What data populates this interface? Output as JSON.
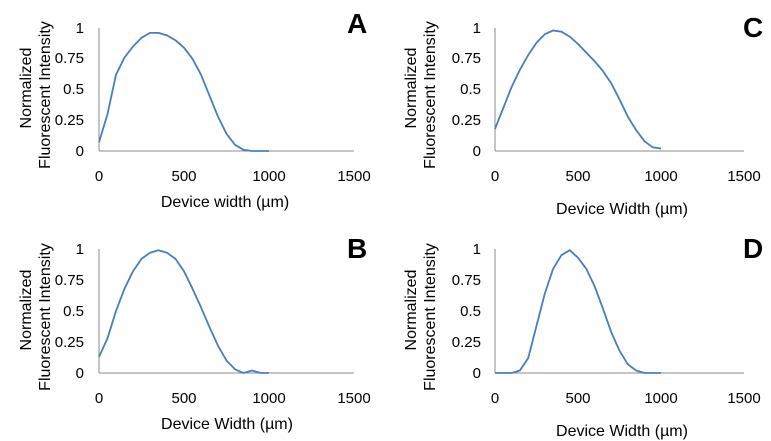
{
  "colors": {
    "series": "#4A7EBB",
    "axis": "#8C8C8C",
    "text": "#000000"
  },
  "chart_data": [
    {
      "type": "line",
      "panel_label": "A",
      "xlabel": "Device width (µm)",
      "ylabel_lines": [
        "Normalized",
        "Fluorescent Intensity"
      ],
      "xlim": [
        0,
        1500
      ],
      "ylim": [
        0,
        1
      ],
      "x_ticks": [
        "0",
        "500",
        "1000",
        "1500"
      ],
      "y_ticks": [
        "0",
        "0.25",
        "0.5",
        "0.75",
        "1"
      ],
      "grid": false,
      "x": [
        0,
        50,
        100,
        150,
        200,
        250,
        300,
        350,
        400,
        450,
        500,
        550,
        600,
        650,
        700,
        750,
        800,
        850,
        900,
        950,
        1000
      ],
      "y": [
        0.07,
        0.3,
        0.62,
        0.76,
        0.85,
        0.92,
        0.96,
        0.96,
        0.94,
        0.9,
        0.84,
        0.75,
        0.62,
        0.45,
        0.28,
        0.14,
        0.05,
        0.01,
        0.0,
        0.0,
        0.0
      ]
    },
    {
      "type": "line",
      "panel_label": "B",
      "xlabel": "Device Width (µm)",
      "ylabel_lines": [
        "Normalized",
        "Fluorescent Intensity"
      ],
      "xlim": [
        0,
        1500
      ],
      "ylim": [
        0,
        1
      ],
      "x_ticks": [
        "0",
        "500",
        "1000",
        "1500"
      ],
      "y_ticks": [
        "0",
        "0.25",
        "0.5",
        "0.75",
        "1"
      ],
      "grid": false,
      "x": [
        0,
        50,
        100,
        150,
        200,
        250,
        300,
        350,
        400,
        450,
        500,
        550,
        600,
        650,
        700,
        750,
        800,
        850,
        900,
        950,
        1000
      ],
      "y": [
        0.13,
        0.28,
        0.5,
        0.68,
        0.82,
        0.92,
        0.97,
        0.99,
        0.97,
        0.92,
        0.82,
        0.68,
        0.53,
        0.37,
        0.22,
        0.1,
        0.03,
        0.0,
        0.02,
        0.0,
        0.0
      ]
    },
    {
      "type": "line",
      "panel_label": "C",
      "xlabel": "Device Width (µm)",
      "ylabel_lines": [
        "Normalized",
        "Fluorescent Intensity"
      ],
      "xlim": [
        0,
        1500
      ],
      "ylim": [
        0,
        1
      ],
      "x_ticks": [
        "0",
        "500",
        "1000",
        "1500"
      ],
      "y_ticks": [
        "0",
        "0.25",
        "0.5",
        "0.75",
        "1"
      ],
      "grid": false,
      "x": [
        0,
        50,
        100,
        150,
        200,
        250,
        300,
        350,
        400,
        450,
        500,
        550,
        600,
        650,
        700,
        750,
        800,
        850,
        900,
        950,
        1000
      ],
      "y": [
        0.18,
        0.35,
        0.52,
        0.66,
        0.78,
        0.88,
        0.95,
        0.98,
        0.97,
        0.93,
        0.87,
        0.8,
        0.73,
        0.65,
        0.55,
        0.42,
        0.28,
        0.17,
        0.08,
        0.03,
        0.02
      ]
    },
    {
      "type": "line",
      "panel_label": "D",
      "xlabel": "Device Width (µm)",
      "ylabel_lines": [
        "Normalized",
        "Fluorescent Intensity"
      ],
      "xlim": [
        0,
        1500
      ],
      "ylim": [
        0,
        1
      ],
      "x_ticks": [
        "0",
        "500",
        "1000",
        "1500"
      ],
      "y_ticks": [
        "0",
        "0.25",
        "0.5",
        "0.75",
        "1"
      ],
      "grid": false,
      "x": [
        0,
        50,
        100,
        150,
        200,
        250,
        300,
        350,
        400,
        450,
        500,
        550,
        600,
        650,
        700,
        750,
        800,
        850,
        900,
        950,
        1000
      ],
      "y": [
        0.0,
        0.0,
        0.0,
        0.02,
        0.12,
        0.38,
        0.64,
        0.84,
        0.95,
        0.99,
        0.93,
        0.84,
        0.7,
        0.52,
        0.33,
        0.18,
        0.07,
        0.02,
        0.0,
        0.0,
        0.0
      ]
    }
  ]
}
